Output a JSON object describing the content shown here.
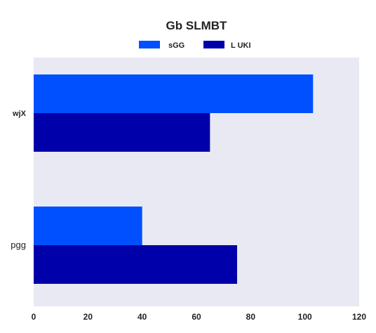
{
  "chart_data": {
    "type": "bar",
    "orientation": "horizontal",
    "title": "Gb SLMBT",
    "xlabel": "",
    "ylabel": "",
    "categories": [
      "wjX",
      "pgg"
    ],
    "series": [
      {
        "name": "sGG",
        "color": "#0050ff",
        "values": [
          103,
          40
        ]
      },
      {
        "name": "L UKI",
        "color": "#0000aa",
        "values": [
          65,
          75
        ]
      }
    ],
    "xlim": [
      0,
      120
    ],
    "xticks": [
      0,
      20,
      40,
      60,
      80,
      100,
      120
    ],
    "xtick_labels": [
      "0",
      "20",
      "40",
      "60",
      "80",
      "100",
      "120"
    ],
    "grid": false,
    "background": "#e9e9f3",
    "legend_position": "top-center"
  }
}
